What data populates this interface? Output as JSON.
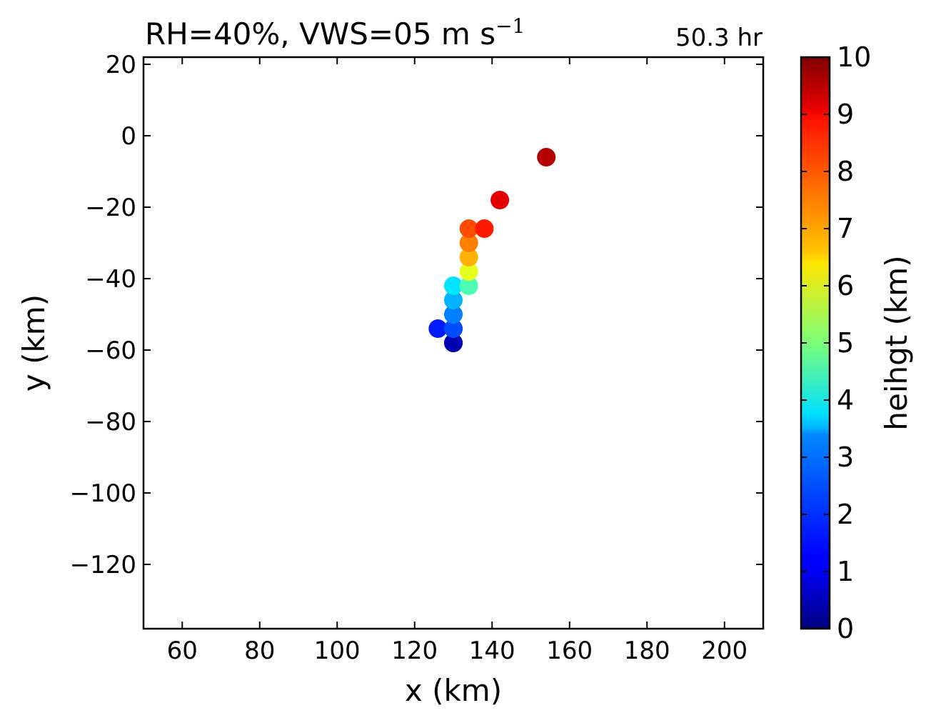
{
  "chart_data": {
    "type": "scatter",
    "title_main": "RH=40%, VWS=05 m s",
    "title_exp": "−1",
    "annotation": "50.3 hr",
    "annotation_color": "#0000ff",
    "xlabel": "x (km)",
    "ylabel": "y (km)",
    "xlim": [
      50,
      210
    ],
    "ylim": [
      -138,
      22
    ],
    "xticks": [
      60,
      80,
      100,
      120,
      140,
      160,
      180,
      200
    ],
    "yticks": [
      20,
      0,
      -20,
      -40,
      -60,
      -80,
      -100,
      -120
    ],
    "xtick_labels": [
      "60",
      "80",
      "100",
      "120",
      "140",
      "160",
      "180",
      "200"
    ],
    "ytick_labels": [
      "20",
      "0",
      "−20",
      "−40",
      "−60",
      "−80",
      "−100",
      "−120"
    ],
    "grid": false,
    "colorbar": {
      "label": "heihgt (km)",
      "colormap": "jet",
      "range": [
        0,
        10
      ],
      "ticks": [
        0,
        1,
        2,
        3,
        4,
        5,
        6,
        7,
        8,
        9,
        10
      ],
      "tick_labels": [
        "0",
        "1",
        "2",
        "3",
        "4",
        "5",
        "6",
        "7",
        "8",
        "9",
        "10"
      ]
    },
    "points": [
      {
        "x": 130,
        "y": -58,
        "z": 0.0
      },
      {
        "x": 130,
        "y": -58,
        "z": 0.5
      },
      {
        "x": 130,
        "y": -54,
        "z": 1.0
      },
      {
        "x": 126,
        "y": -54,
        "z": 1.5
      },
      {
        "x": 130,
        "y": -54,
        "z": 2.0
      },
      {
        "x": 130,
        "y": -50,
        "z": 2.5
      },
      {
        "x": 130,
        "y": -46,
        "z": 3.0
      },
      {
        "x": 130,
        "y": -42,
        "z": 3.5
      },
      {
        "x": 134,
        "y": -42,
        "z": 4.5
      },
      {
        "x": 134,
        "y": -38,
        "z": 6.0
      },
      {
        "x": 134,
        "y": -34,
        "z": 7.0
      },
      {
        "x": 134,
        "y": -30,
        "z": 7.5
      },
      {
        "x": 134,
        "y": -26,
        "z": 8.0
      },
      {
        "x": 138,
        "y": -26,
        "z": 8.5
      },
      {
        "x": 142,
        "y": -18,
        "z": 9.0
      },
      {
        "x": 154,
        "y": -6,
        "z": 9.5
      }
    ]
  }
}
